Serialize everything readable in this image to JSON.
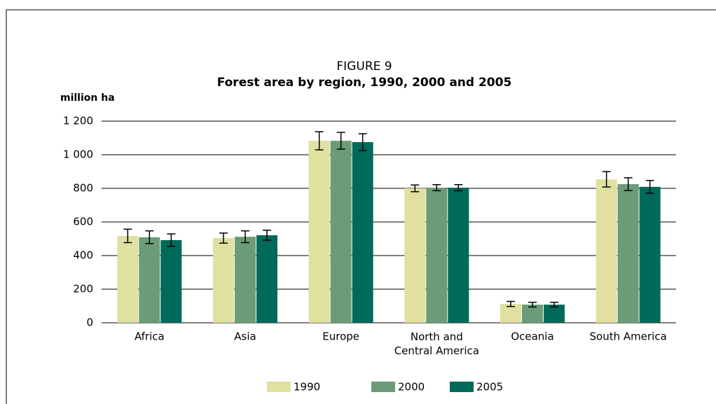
{
  "chart_data": {
    "type": "bar",
    "title": "FIGURE 9",
    "subtitle": "Forest area by region, 1990, 2000 and 2005",
    "y_label": "million ha",
    "categories": [
      "Africa",
      "Asia",
      "Europe",
      "North and\nCentral America",
      "Oceania",
      "South America"
    ],
    "series": [
      {
        "name": "1990",
        "color": "#e0e0a0",
        "values": [
          517,
          504,
          1083,
          800,
          112,
          854
        ],
        "errors": [
          40,
          30,
          54,
          20,
          15,
          46
        ]
      },
      {
        "name": "2000",
        "color": "#6b9c78",
        "values": [
          509,
          512,
          1083,
          804,
          108,
          825
        ],
        "errors": [
          38,
          35,
          50,
          18,
          14,
          38
        ]
      },
      {
        "name": "2005",
        "color": "#006a5a",
        "values": [
          492,
          521,
          1075,
          804,
          108,
          809
        ],
        "errors": [
          37,
          30,
          50,
          18,
          14,
          38
        ]
      }
    ],
    "ylim": [
      0,
      1200
    ],
    "yticks": [
      0,
      200,
      400,
      600,
      800,
      {
        "value": 1000,
        "label": "1 000"
      },
      {
        "value": 1200,
        "label": "1 200"
      }
    ],
    "grid": true
  }
}
